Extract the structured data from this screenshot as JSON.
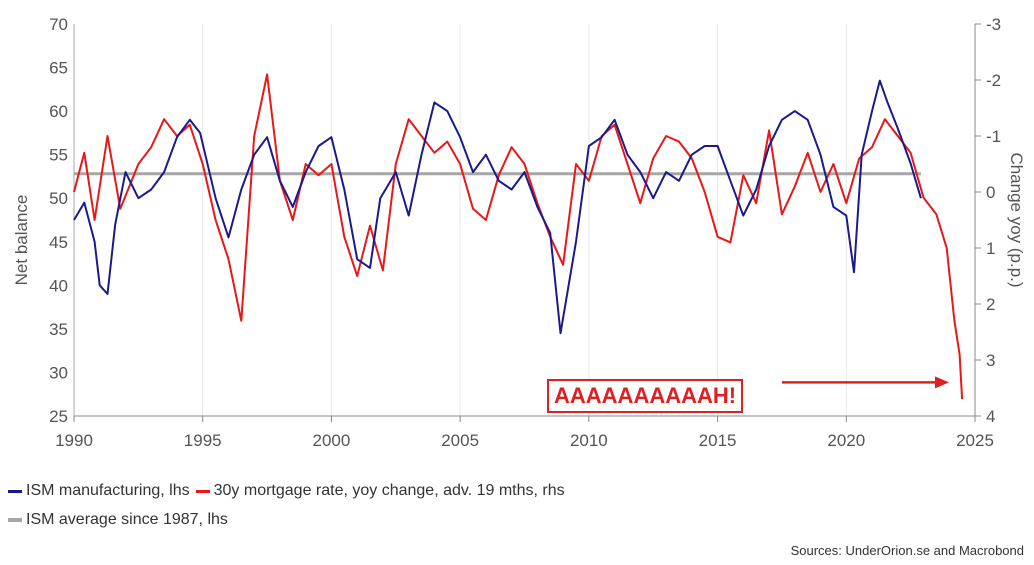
{
  "chart_data": {
    "type": "line",
    "title": "",
    "xlabel": "",
    "ylabel": "Net balance",
    "ylabel_right": "Change yoy (p.p.)",
    "xlim": [
      1990,
      2025
    ],
    "ylim": [
      25,
      70
    ],
    "ylim_right": [
      4,
      -3
    ],
    "right_axis_inverted": true,
    "x_ticks": [
      "1990",
      "1995",
      "2000",
      "2005",
      "2010",
      "2015",
      "2020",
      "2025"
    ],
    "y_ticks": [
      "25",
      "30",
      "35",
      "40",
      "45",
      "50",
      "55",
      "60",
      "65",
      "70"
    ],
    "y_ticks_right": [
      "4",
      "3",
      "2",
      "1",
      "0",
      "-1",
      "-2",
      "-3"
    ],
    "grid": "vertical",
    "legend_position": "bottom",
    "series": [
      {
        "name": "ISM manufacturing, lhs",
        "color": "#1a1a8c",
        "axis": "left",
        "x": [
          1990.0,
          1990.4,
          1990.8,
          1991.0,
          1991.3,
          1991.6,
          1992.0,
          1992.5,
          1993.0,
          1993.5,
          1994.0,
          1994.5,
          1994.9,
          1995.5,
          1996.0,
          1996.5,
          1997.0,
          1997.5,
          1998.0,
          1998.5,
          1999.0,
          1999.5,
          2000.0,
          2000.5,
          2001.0,
          2001.5,
          2001.9,
          2002.5,
          2003.0,
          2003.5,
          2004.0,
          2004.5,
          2005.0,
          2005.5,
          2006.0,
          2006.5,
          2007.0,
          2007.5,
          2008.0,
          2008.5,
          2008.9,
          2009.5,
          2010.0,
          2010.5,
          2011.0,
          2011.5,
          2012.0,
          2012.5,
          2013.0,
          2013.5,
          2014.0,
          2014.5,
          2015.0,
          2015.5,
          2016.0,
          2016.5,
          2017.0,
          2017.5,
          2018.0,
          2018.5,
          2019.0,
          2019.5,
          2020.0,
          2020.3,
          2020.6,
          2021.0,
          2021.3,
          2021.6,
          2022.0,
          2022.5,
          2022.9
        ],
        "y": [
          47.5,
          49.5,
          45,
          40,
          39,
          47,
          53,
          50,
          51,
          53,
          57,
          59,
          57.5,
          50,
          45.5,
          51,
          55,
          57,
          52,
          49,
          53,
          56,
          57,
          51,
          43,
          42,
          50,
          53,
          48,
          55,
          61,
          60,
          57,
          53,
          55,
          52,
          51,
          53,
          49,
          46,
          34.5,
          45,
          56,
          57,
          59,
          55,
          53,
          50,
          53,
          52,
          55,
          56,
          56,
          52,
          48,
          51,
          56,
          59,
          60,
          59,
          55,
          49,
          48,
          41.5,
          55,
          60,
          63.5,
          61,
          58,
          54,
          50
        ]
      },
      {
        "name": "30y mortgage rate, yoy change, adv. 19 mths, rhs",
        "color": "#e81818",
        "axis": "right",
        "x": [
          1990.0,
          1990.4,
          1990.8,
          1991.3,
          1991.8,
          1992.5,
          1993.0,
          1993.5,
          1994.0,
          1994.5,
          1995.0,
          1995.5,
          1996.0,
          1996.5,
          1997.0,
          1997.5,
          1998.0,
          1998.5,
          1999.0,
          1999.5,
          2000.0,
          2000.5,
          2001.0,
          2001.5,
          2002.0,
          2002.5,
          2003.0,
          2003.5,
          2004.0,
          2004.5,
          2005.0,
          2005.5,
          2006.0,
          2006.5,
          2007.0,
          2007.5,
          2008.0,
          2008.5,
          2009.0,
          2009.5,
          2010.0,
          2010.5,
          2011.0,
          2011.5,
          2012.0,
          2012.5,
          2013.0,
          2013.5,
          2014.0,
          2014.5,
          2015.0,
          2015.5,
          2016.0,
          2016.5,
          2017.0,
          2017.5,
          2018.0,
          2018.5,
          2019.0,
          2019.5,
          2020.0,
          2020.5,
          2021.0,
          2021.5,
          2022.0,
          2022.5,
          2023.0,
          2023.5,
          2023.9,
          2024.2,
          2024.4,
          2024.5
        ],
        "y": [
          0.0,
          -0.7,
          0.5,
          -1.0,
          0.3,
          -0.5,
          -0.8,
          -1.3,
          -1.0,
          -1.2,
          -0.5,
          0.5,
          1.2,
          2.3,
          -1.0,
          -2.1,
          -0.2,
          0.5,
          -0.5,
          -0.3,
          -0.5,
          0.8,
          1.5,
          0.6,
          1.4,
          -0.5,
          -1.3,
          -1.0,
          -0.7,
          -0.9,
          -0.5,
          0.3,
          0.5,
          -0.3,
          -0.8,
          -0.5,
          0.2,
          0.8,
          1.3,
          -0.5,
          -0.2,
          -1.0,
          -1.2,
          -0.5,
          0.2,
          -0.6,
          -1.0,
          -0.9,
          -0.6,
          0.0,
          0.8,
          0.9,
          -0.3,
          0.2,
          -1.1,
          0.4,
          -0.1,
          -0.7,
          0.0,
          -0.5,
          0.2,
          -0.6,
          -0.8,
          -1.3,
          -1.0,
          -0.7,
          0.1,
          0.4,
          1.0,
          2.3,
          2.9,
          3.7
        ]
      },
      {
        "name": "ISM average since 1987, lhs",
        "color": "#a6a6a6",
        "axis": "left",
        "x": [
          1990,
          2022.9
        ],
        "y": [
          52.8,
          52.8
        ]
      }
    ],
    "annotation": {
      "text": "AAAAAAAAAAH!",
      "color": "#e02020",
      "arrow_to": {
        "x": 2024.3,
        "y_right": 3.4
      }
    }
  },
  "legend": {
    "row1": [
      {
        "label": "ISM manufacturing, lhs",
        "color": "#1a1a8c"
      },
      {
        "label": "30y mortgage rate, yoy change, adv. 19 mths, rhs",
        "color": "#e81818"
      }
    ],
    "row2": [
      {
        "label": "ISM average since 1987, lhs",
        "color": "#a6a6a6"
      }
    ]
  },
  "source": "Sources: UnderOrion.se and Macrobond"
}
